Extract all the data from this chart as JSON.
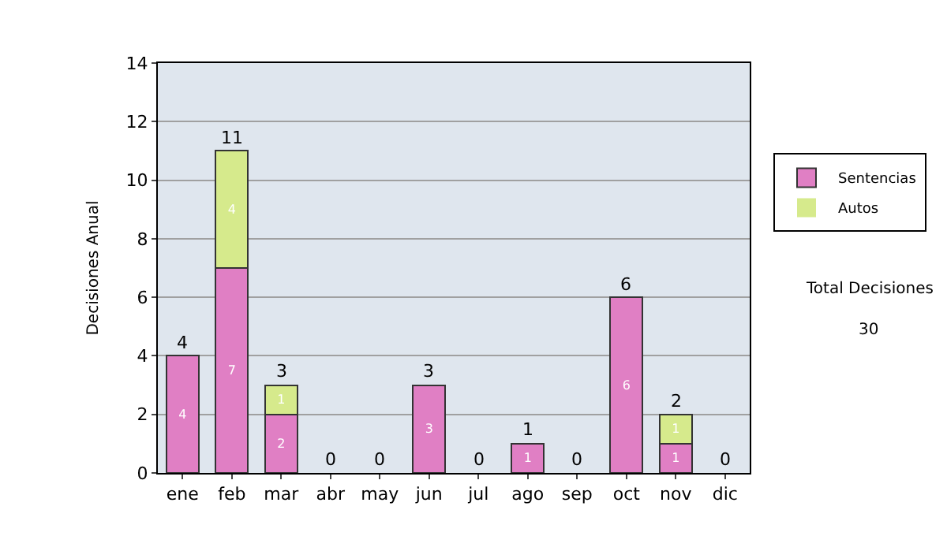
{
  "chart_data": {
    "type": "bar",
    "stacked": true,
    "ylabel": "Decisiones Anual",
    "categories": [
      "ene",
      "feb",
      "mar",
      "abr",
      "may",
      "jun",
      "jul",
      "ago",
      "sep",
      "oct",
      "nov",
      "dic"
    ],
    "series": [
      {
        "name": "Sentencias",
        "color": "#e07fc4",
        "values": [
          4,
          7,
          2,
          0,
          0,
          3,
          0,
          1,
          0,
          6,
          1,
          0
        ],
        "value_labels": [
          "4",
          "7",
          "2",
          null,
          null,
          "3",
          null,
          "1",
          null,
          "6",
          "1",
          null
        ]
      },
      {
        "name": "Autos",
        "color": "#d6ea8c",
        "values": [
          0,
          4,
          1,
          0,
          0,
          0,
          0,
          0,
          0,
          0,
          1,
          0
        ],
        "value_labels": [
          null,
          "4",
          "1",
          null,
          null,
          null,
          null,
          null,
          null,
          null,
          "1",
          null
        ]
      }
    ],
    "totals": [
      "4",
      "11",
      "3",
      "0",
      "0",
      "3",
      "0",
      "1",
      "0",
      "6",
      "2",
      "0"
    ],
    "ylim": [
      0,
      14
    ],
    "yticks": [
      0,
      2,
      4,
      6,
      8,
      10,
      12,
      14
    ],
    "grid": "y",
    "legend": "right",
    "annotations": [
      "Total Decisiones",
      "30"
    ]
  }
}
